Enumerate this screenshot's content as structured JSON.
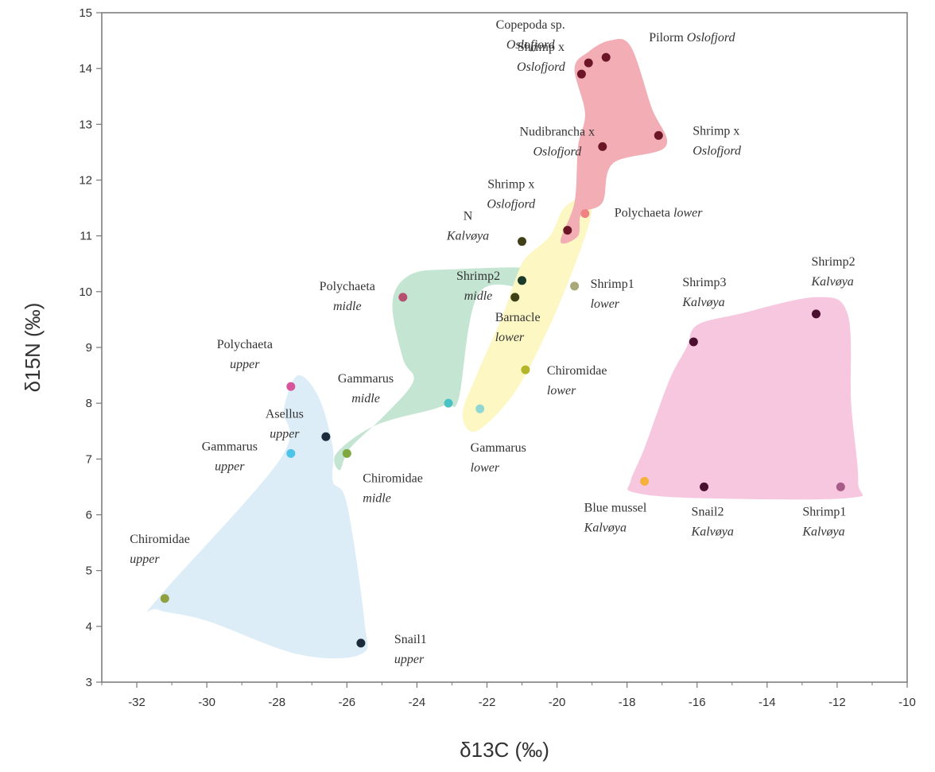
{
  "chart_data": {
    "type": "scatter",
    "xlabel": "δ13C (‰)",
    "ylabel": "δ15N (‰)",
    "xlim": [
      -33,
      -10
    ],
    "ylim": [
      3,
      15
    ],
    "xticks": [
      -32,
      -30,
      -28,
      -26,
      -24,
      -22,
      -20,
      -18,
      -16,
      -14,
      -12,
      -10
    ],
    "yticks": [
      3,
      4,
      5,
      6,
      7,
      8,
      9,
      10,
      11,
      12,
      13,
      14,
      15
    ],
    "grid": false,
    "groups": [
      {
        "id": "upper",
        "color": "#dcedf8",
        "hull": [
          [
            -31.4,
            4.5
          ],
          [
            -27.9,
            7.0
          ],
          [
            -27.8,
            7.9
          ],
          [
            -27.4,
            8.5
          ],
          [
            -26.8,
            8.1
          ],
          [
            -26.4,
            7.2
          ],
          [
            -26.4,
            6.6
          ],
          [
            -26.0,
            6.2
          ],
          [
            -25.5,
            4.1
          ],
          [
            -25.6,
            3.5
          ],
          [
            -27.4,
            3.5
          ],
          [
            -30.0,
            4.1
          ],
          [
            -31.4,
            4.3
          ]
        ]
      },
      {
        "id": "midle",
        "color": "#c4e5d2",
        "hull": [
          [
            -26.3,
            7.1
          ],
          [
            -25.2,
            7.6
          ],
          [
            -23.5,
            7.9
          ],
          [
            -23.1,
            8.0
          ],
          [
            -22.8,
            8.1
          ],
          [
            -22.2,
            10.0
          ],
          [
            -20.4,
            10.0
          ],
          [
            -20.5,
            10.4
          ],
          [
            -23.0,
            10.4
          ],
          [
            -24.2,
            10.3
          ],
          [
            -24.7,
            9.8
          ],
          [
            -24.4,
            8.8
          ],
          [
            -24.1,
            8.4
          ],
          [
            -24.9,
            7.8
          ],
          [
            -25.9,
            7.2
          ],
          [
            -26.2,
            6.8
          ]
        ]
      },
      {
        "id": "lower",
        "color": "#fdf7c4",
        "hull": [
          [
            -22.7,
            7.8
          ],
          [
            -22.3,
            7.5
          ],
          [
            -21.2,
            8.2
          ],
          [
            -20.2,
            9.4
          ],
          [
            -19.3,
            10.8
          ],
          [
            -19.0,
            11.5
          ],
          [
            -19.2,
            11.7
          ],
          [
            -19.8,
            11.5
          ],
          [
            -20.2,
            11.0
          ],
          [
            -20.9,
            10.6
          ],
          [
            -21.2,
            10.2
          ],
          [
            -21.6,
            9.5
          ],
          [
            -22.3,
            8.5
          ]
        ]
      },
      {
        "id": "oslofjord",
        "color": "#f2aeb4",
        "hull": [
          [
            -19.9,
            10.9
          ],
          [
            -19.5,
            11.6
          ],
          [
            -19.4,
            12.6
          ],
          [
            -19.2,
            13.2
          ],
          [
            -19.5,
            14.0
          ],
          [
            -19.1,
            14.3
          ],
          [
            -18.5,
            14.5
          ],
          [
            -17.9,
            14.4
          ],
          [
            -17.3,
            13.3
          ],
          [
            -16.9,
            12.6
          ],
          [
            -18.4,
            12.3
          ],
          [
            -18.7,
            11.6
          ],
          [
            -19.3,
            11.4
          ],
          [
            -19.4,
            11.0
          ]
        ]
      },
      {
        "id": "kalvoya",
        "color": "#f7c7df",
        "hull": [
          [
            -17.9,
            6.6
          ],
          [
            -17.5,
            7.2
          ],
          [
            -16.8,
            8.4
          ],
          [
            -16.3,
            9.0
          ],
          [
            -16.0,
            9.4
          ],
          [
            -14.8,
            9.6
          ],
          [
            -12.6,
            9.9
          ],
          [
            -11.7,
            9.6
          ],
          [
            -11.6,
            8.0
          ],
          [
            -11.4,
            6.6
          ],
          [
            -11.7,
            6.3
          ],
          [
            -16.0,
            6.3
          ],
          [
            -17.8,
            6.4
          ]
        ]
      }
    ],
    "points": [
      {
        "name": "Copepoda sp.",
        "site": "Oslofjord",
        "x": -19.1,
        "y": 14.1,
        "color": "#6b1526"
      },
      {
        "name": "Pilorm",
        "site": "Oslofjord",
        "x": -18.6,
        "y": 14.2,
        "color": "#6b1526"
      },
      {
        "name": "Shrimp x",
        "site": "Oslofjord",
        "x": -19.3,
        "y": 13.9,
        "color": "#6b1526"
      },
      {
        "name": "Nudibrancha x",
        "site": "Oslofjord",
        "x": -18.7,
        "y": 12.6,
        "color": "#6b1526"
      },
      {
        "name": "Shrimp x",
        "site": "Oslofjord",
        "x": -17.1,
        "y": 12.8,
        "color": "#6b1526"
      },
      {
        "name": "Shrimp x",
        "site": "Oslofjord",
        "x": -19.7,
        "y": 11.1,
        "color": "#6b1526"
      },
      {
        "name": "Polychaeta",
        "site": "lower",
        "x": -19.2,
        "y": 11.4,
        "color": "#ef8282"
      },
      {
        "name": "N",
        "site": "Kalvøya",
        "x": -21.0,
        "y": 10.9,
        "color": "#3f3f18"
      },
      {
        "name": "Shrimp2",
        "site": "midle",
        "x": -21.0,
        "y": 10.2,
        "color": "#1c3a2a"
      },
      {
        "name": "Barnacle",
        "site": "lower",
        "x": -21.2,
        "y": 9.9,
        "color": "#3f3f18"
      },
      {
        "name": "Shrimp1",
        "site": "lower",
        "x": -19.5,
        "y": 10.1,
        "color": "#a8a87a"
      },
      {
        "name": "Polychaeta",
        "site": "midle",
        "x": -24.4,
        "y": 9.9,
        "color": "#b55070"
      },
      {
        "name": "Chiromidae",
        "site": "lower",
        "x": -20.9,
        "y": 8.6,
        "color": "#b5b52a"
      },
      {
        "name": "Gammarus",
        "site": "midle",
        "x": -23.1,
        "y": 8.0,
        "color": "#49c3c3"
      },
      {
        "name": "Gammarus",
        "site": "lower",
        "x": -22.2,
        "y": 7.9,
        "color": "#8fd7d3"
      },
      {
        "name": "Chiromidae",
        "site": "midle",
        "x": -26.0,
        "y": 7.1,
        "color": "#7fa840"
      },
      {
        "name": "Polychaeta",
        "site": "upper",
        "x": -27.6,
        "y": 8.3,
        "color": "#d8559c"
      },
      {
        "name": "Asellus",
        "site": "upper",
        "x": -26.6,
        "y": 7.4,
        "color": "#1b2b3c"
      },
      {
        "name": "Gammarus",
        "site": "upper",
        "x": -27.6,
        "y": 7.1,
        "color": "#4cc4e8"
      },
      {
        "name": "Chiromidae",
        "site": "upper",
        "x": -31.2,
        "y": 4.5,
        "color": "#8fa040"
      },
      {
        "name": "Snail1",
        "site": "upper",
        "x": -25.6,
        "y": 3.7,
        "color": "#1b2b3c"
      },
      {
        "name": "Shrimp3",
        "site": "Kalvøya",
        "x": -16.1,
        "y": 9.1,
        "color": "#4b1030"
      },
      {
        "name": "Shrimp2",
        "site": "Kalvøya",
        "x": -12.6,
        "y": 9.6,
        "color": "#4b1030"
      },
      {
        "name": "Blue mussel",
        "site": "Kalvøya",
        "x": -17.5,
        "y": 6.6,
        "color": "#f4b23c"
      },
      {
        "name": "Snail2",
        "site": "Kalvøya",
        "x": -15.8,
        "y": 6.5,
        "color": "#4b1030"
      },
      {
        "name": "Shrimp1",
        "site": "Kalvøya",
        "x": -11.9,
        "y": 6.5,
        "color": "#a65c86"
      }
    ]
  }
}
